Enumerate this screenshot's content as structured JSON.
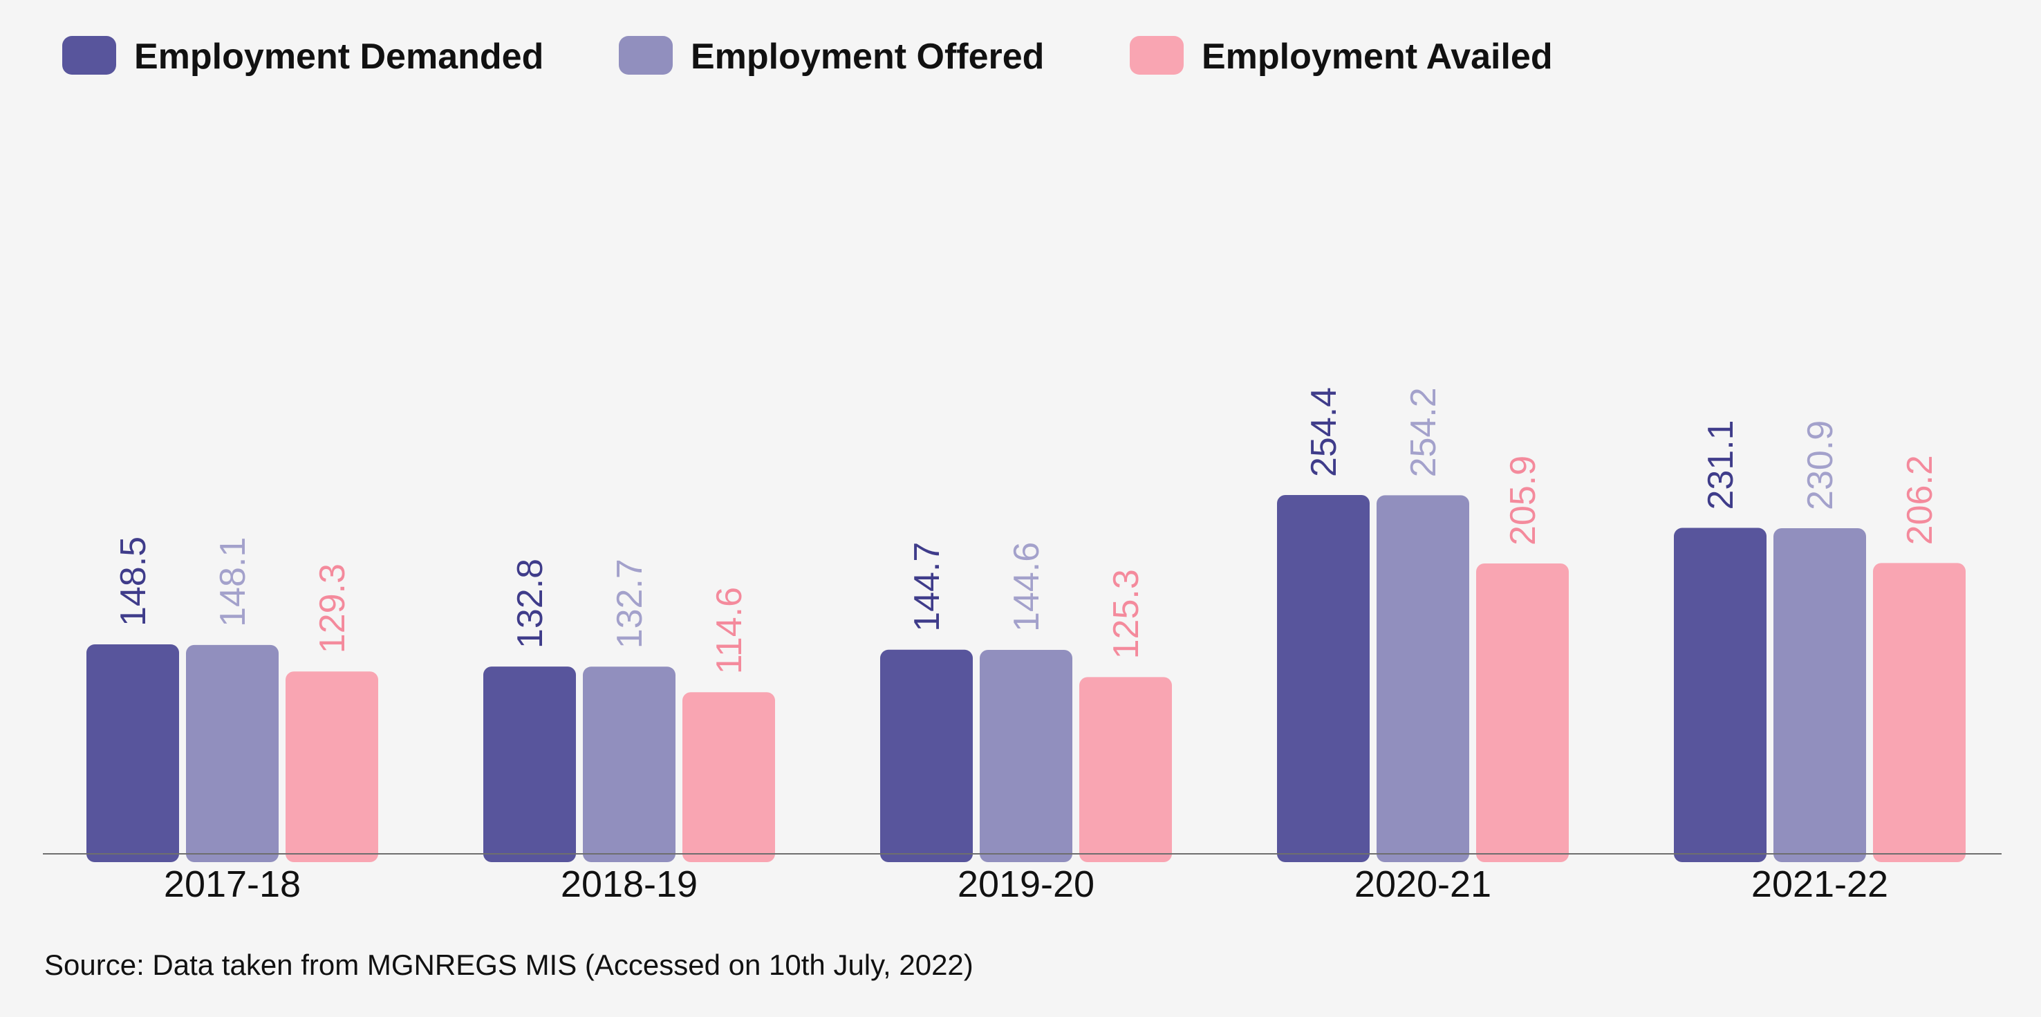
{
  "chart_data": {
    "type": "bar",
    "categories": [
      "2017-18",
      "2018-19",
      "2019-20",
      "2020-21",
      "2021-22"
    ],
    "series": [
      {
        "name": "Employment Demanded",
        "color": "#58559c",
        "values": [
          148.5,
          132.8,
          144.7,
          254.4,
          231.1
        ]
      },
      {
        "name": "Employment Offered",
        "color": "#918fbe",
        "values": [
          148.1,
          132.7,
          144.6,
          254.2,
          230.9
        ]
      },
      {
        "name": "Employment Availed",
        "color": "#f9a5b2",
        "values": [
          129.3,
          114.6,
          125.3,
          205.9,
          206.2
        ]
      }
    ],
    "value_label_colors": [
      "#3f3c8a",
      "#a3a1cb",
      "#f48a9c"
    ],
    "ylim": [
      0,
      300
    ],
    "grid": false,
    "legend_position": "top-left",
    "source": "Source: Data taken from MGNREGS MIS (Accessed on 10th July, 2022)"
  }
}
